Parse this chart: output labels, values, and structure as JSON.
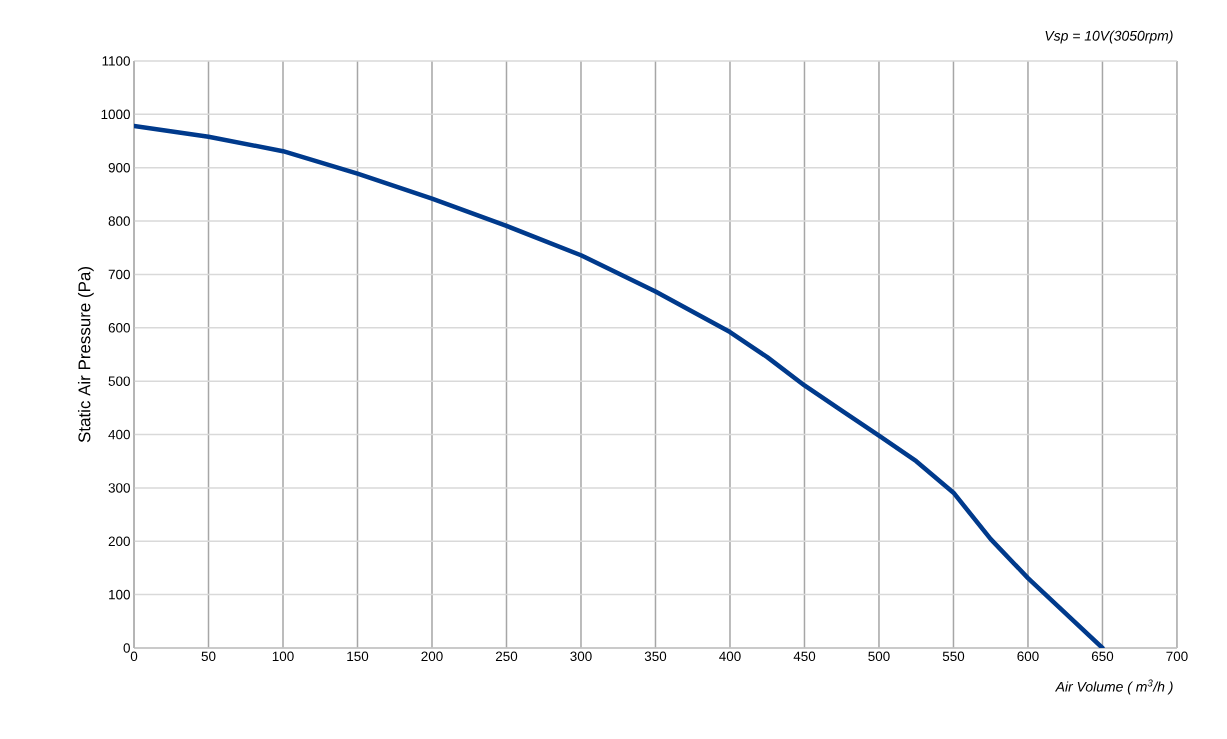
{
  "chart_data": {
    "type": "line",
    "title": "*Vsp = 10V(3050rpm)*",
    "xlabel": "*Air Volume ( m$^{3}$/h )*",
    "ylabel": "Static Air Pressure  (Pa)",
    "x": [
      0,
      50,
      100,
      150,
      200,
      250,
      300,
      350,
      400,
      425,
      450,
      475,
      500,
      525,
      550,
      575,
      600,
      650
    ],
    "series": [
      {
        "color": "#003a8c",
        "values": [
          978,
          958,
          931,
          889,
          842,
          791,
          736,
          668,
          592,
          545,
          492,
          445,
          398,
          350,
          291,
          204,
          131,
          0
        ]
      }
    ],
    "xlim": [
      0,
      700
    ],
    "ylim": [
      0,
      1100
    ],
    "xticks": [
      0,
      50,
      100,
      150,
      200,
      250,
      300,
      350,
      400,
      450,
      500,
      550,
      600,
      650,
      700
    ],
    "yticks": [
      0,
      100,
      200,
      300,
      400,
      500,
      600,
      700,
      800,
      900,
      1000,
      1100
    ],
    "grid": true,
    "marker": "none",
    "line_style": "solid"
  }
}
